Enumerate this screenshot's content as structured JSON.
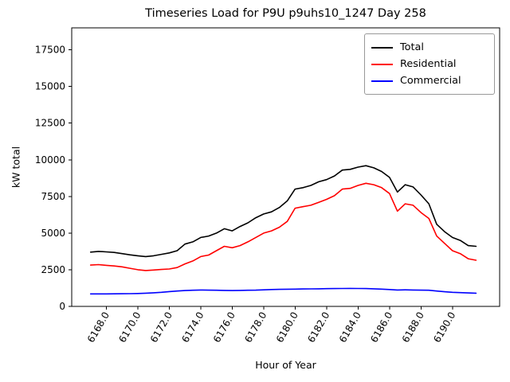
{
  "title": "Timeseries Load for P9U p9uhs10_1247  Day 258",
  "chart_data": {
    "type": "line",
    "title": "Timeseries Load for P9U p9uhs10_1247  Day 258",
    "xlabel": "Hour of Year",
    "ylabel": "kW total",
    "xlim": [
      6165.8,
      6193.0
    ],
    "ylim": [
      0,
      19000
    ],
    "grid": false,
    "legend_position": "upper right",
    "x_ticks": [
      {
        "value": 6168,
        "label": "6168.0"
      },
      {
        "value": 6170,
        "label": "6170.0"
      },
      {
        "value": 6172,
        "label": "6172.0"
      },
      {
        "value": 6174,
        "label": "6174.0"
      },
      {
        "value": 6176,
        "label": "6176.0"
      },
      {
        "value": 6178,
        "label": "6178.0"
      },
      {
        "value": 6180,
        "label": "6180.0"
      },
      {
        "value": 6182,
        "label": "6182.0"
      },
      {
        "value": 6184,
        "label": "6184.0"
      },
      {
        "value": 6186,
        "label": "6186.0"
      },
      {
        "value": 6188,
        "label": "6188.0"
      },
      {
        "value": 6190,
        "label": "6190.0"
      }
    ],
    "y_ticks": [
      {
        "value": 0,
        "label": "0"
      },
      {
        "value": 2500,
        "label": "2500"
      },
      {
        "value": 5000,
        "label": "5000"
      },
      {
        "value": 7500,
        "label": "7500"
      },
      {
        "value": 10000,
        "label": "10000"
      },
      {
        "value": 12500,
        "label": "12500"
      },
      {
        "value": 15000,
        "label": "15000"
      },
      {
        "value": 17500,
        "label": "17500"
      }
    ],
    "x": [
      6167.0,
      6167.5,
      6168.0,
      6168.5,
      6169.0,
      6169.5,
      6170.0,
      6170.5,
      6171.0,
      6171.5,
      6172.0,
      6172.5,
      6173.0,
      6173.5,
      6174.0,
      6174.5,
      6175.0,
      6175.5,
      6176.0,
      6176.5,
      6177.0,
      6177.5,
      6178.0,
      6178.5,
      6179.0,
      6179.5,
      6180.0,
      6180.5,
      6181.0,
      6181.5,
      6182.0,
      6182.5,
      6183.0,
      6183.5,
      6184.0,
      6184.5,
      6185.0,
      6185.5,
      6186.0,
      6186.5,
      6187.0,
      6187.5,
      6188.0,
      6188.5,
      6189.0,
      6189.5,
      6190.0,
      6190.5,
      6191.0,
      6191.5
    ],
    "series": [
      {
        "name": "Total",
        "color": "#000000",
        "values": [
          3700,
          3750,
          3720,
          3680,
          3600,
          3520,
          3450,
          3400,
          3450,
          3550,
          3650,
          3800,
          4250,
          4400,
          4700,
          4800,
          5000,
          5300,
          5150,
          5450,
          5700,
          6050,
          6300,
          6450,
          6750,
          7200,
          8000,
          8100,
          8250,
          8500,
          8650,
          8900,
          9300,
          9350,
          9500,
          9600,
          9450,
          9200,
          8800,
          7800,
          8300,
          8150,
          7600,
          7000,
          5600,
          5100,
          4700,
          4500,
          4150,
          4100
        ]
      },
      {
        "name": "Residential",
        "color": "#ff0000",
        "values": [
          2820,
          2850,
          2800,
          2760,
          2700,
          2600,
          2500,
          2450,
          2480,
          2520,
          2550,
          2650,
          2900,
          3100,
          3400,
          3500,
          3800,
          4100,
          4000,
          4150,
          4400,
          4700,
          5000,
          5150,
          5400,
          5800,
          6700,
          6800,
          6900,
          7100,
          7300,
          7550,
          8000,
          8050,
          8250,
          8400,
          8300,
          8100,
          7700,
          6500,
          7000,
          6900,
          6400,
          6000,
          4800,
          4300,
          3800,
          3600,
          3250,
          3150
        ]
      },
      {
        "name": "Commercial",
        "color": "#0000ff",
        "values": [
          850,
          855,
          850,
          860,
          865,
          870,
          880,
          900,
          930,
          960,
          1010,
          1050,
          1080,
          1100,
          1120,
          1110,
          1100,
          1090,
          1080,
          1090,
          1100,
          1110,
          1130,
          1150,
          1160,
          1170,
          1180,
          1190,
          1195,
          1200,
          1210,
          1215,
          1220,
          1225,
          1220,
          1215,
          1200,
          1180,
          1150,
          1120,
          1130,
          1120,
          1110,
          1100,
          1050,
          1000,
          960,
          940,
          920,
          900
        ]
      }
    ]
  }
}
